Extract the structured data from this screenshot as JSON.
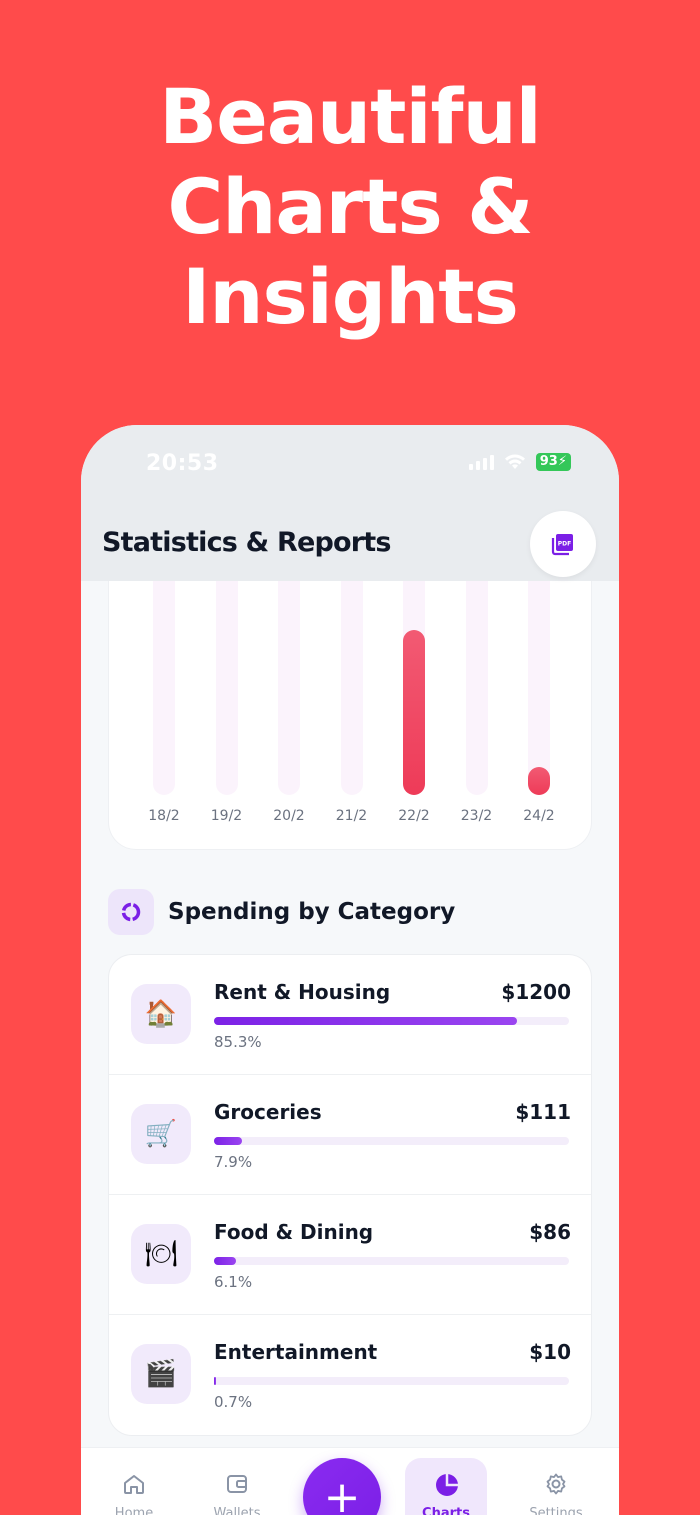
{
  "headline": {
    "line1": "Beautiful",
    "line2": "Charts &",
    "line3": "Insights"
  },
  "status_bar": {
    "time": "20:53",
    "battery": "93"
  },
  "header": {
    "title": "Statistics & Reports",
    "pdf_icon": "pdf-export-icon"
  },
  "chart_data": {
    "type": "bar",
    "categories": [
      "18/2",
      "19/2",
      "20/2",
      "21/2",
      "22/2",
      "23/2",
      "24/2"
    ],
    "values": [
      0,
      0,
      0,
      0,
      100,
      0,
      17
    ],
    "ylim": [
      0,
      130
    ],
    "grid": false,
    "colors": {
      "bar": "#EE3B58",
      "track": "#FBF3FC"
    }
  },
  "spending": {
    "title": "Spending by Category",
    "items": [
      {
        "icon": "🏠",
        "icon_name": "house-icon",
        "name": "Rent & Housing",
        "amount": "$1200",
        "pct_label": "85.3%",
        "pct": 85.3
      },
      {
        "icon": "🛒",
        "icon_name": "shopping-cart-icon",
        "name": "Groceries",
        "amount": "$111",
        "pct_label": "7.9%",
        "pct": 7.9
      },
      {
        "icon": "🍽",
        "icon_name": "plate-cutlery-icon",
        "name": "Food & Dining",
        "amount": "$86",
        "pct_label": "6.1%",
        "pct": 6.1
      },
      {
        "icon": "🎬",
        "icon_name": "clapperboard-icon",
        "name": "Entertainment",
        "amount": "$10",
        "pct_label": "0.7%",
        "pct": 0.7
      }
    ]
  },
  "nav": {
    "home": "Home",
    "wallets": "Wallets",
    "add": "+",
    "charts": "Charts",
    "settings": "Settings",
    "active": "Charts"
  },
  "colors": {
    "background": "#FF4B4B",
    "accent": "#7B1FE6",
    "bar": "#EE3B58"
  }
}
